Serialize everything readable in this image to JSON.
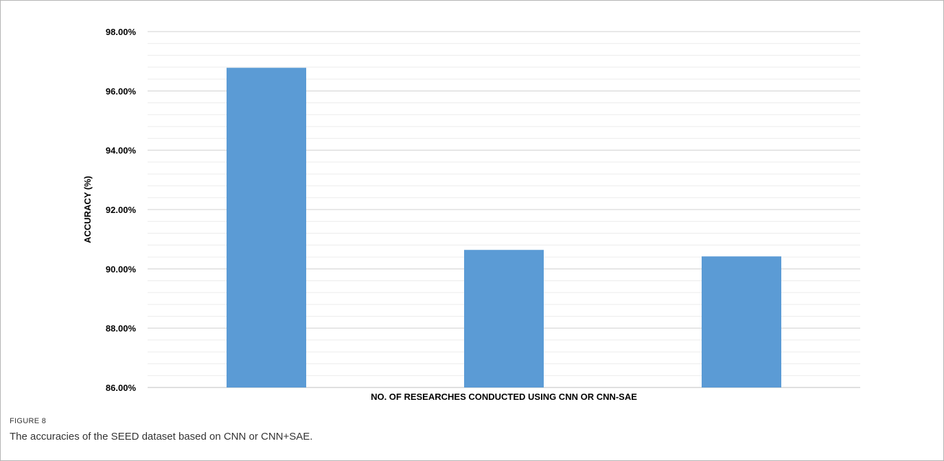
{
  "chart_data": {
    "type": "bar",
    "categories": [
      "",
      "",
      ""
    ],
    "values": [
      96.78,
      90.64,
      90.42
    ],
    "ylabel": "ACCURACY (%)",
    "xlabel": "NO. OF RESEARCHES CONDUCTED USING CNN OR CNN-SAE",
    "ylim": [
      86,
      98
    ],
    "yticks": [
      "86.00%",
      "88.00%",
      "90.00%",
      "92.00%",
      "94.00%",
      "96.00%",
      "98.00%"
    ],
    "grid": true,
    "bar_color": "#5b9bd5"
  },
  "figure": {
    "label": "FIGURE 8",
    "caption": "The accuracies of the SEED dataset based on CNN or CNN+SAE."
  }
}
